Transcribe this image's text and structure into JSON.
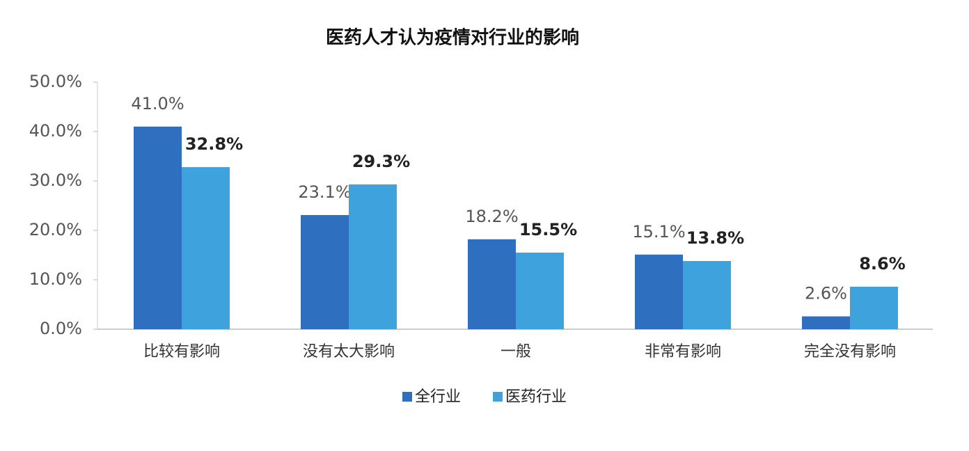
{
  "chart_data": {
    "type": "bar",
    "title": "医药人才认为疫情对行业的影响",
    "categories": [
      "比较有影响",
      "没有太大影响",
      "一般",
      "非常有影响",
      "完全没有影响"
    ],
    "series": [
      {
        "name": "全行业",
        "color": "#2e6fc0",
        "values": [
          41.0,
          23.1,
          18.2,
          15.1,
          2.6
        ],
        "value_labels": [
          "41.0%",
          "23.1%",
          "18.2%",
          "15.1%",
          "2.6%"
        ]
      },
      {
        "name": "医药行业",
        "color": "#3ea3dc",
        "values": [
          32.8,
          29.3,
          15.5,
          13.8,
          8.6
        ],
        "value_labels": [
          "32.8%",
          "29.3%",
          "15.5%",
          "13.8%",
          "8.6%"
        ]
      }
    ],
    "ylim": [
      0,
      50
    ],
    "yticks": [
      {
        "value": 0,
        "label": "0.0%"
      },
      {
        "value": 10,
        "label": "10.0%"
      },
      {
        "value": 20,
        "label": "20.0%"
      },
      {
        "value": 30,
        "label": "30.0%"
      },
      {
        "value": 40,
        "label": "40.0%"
      },
      {
        "value": 50,
        "label": "50.0%"
      }
    ],
    "legend": "bottom"
  }
}
